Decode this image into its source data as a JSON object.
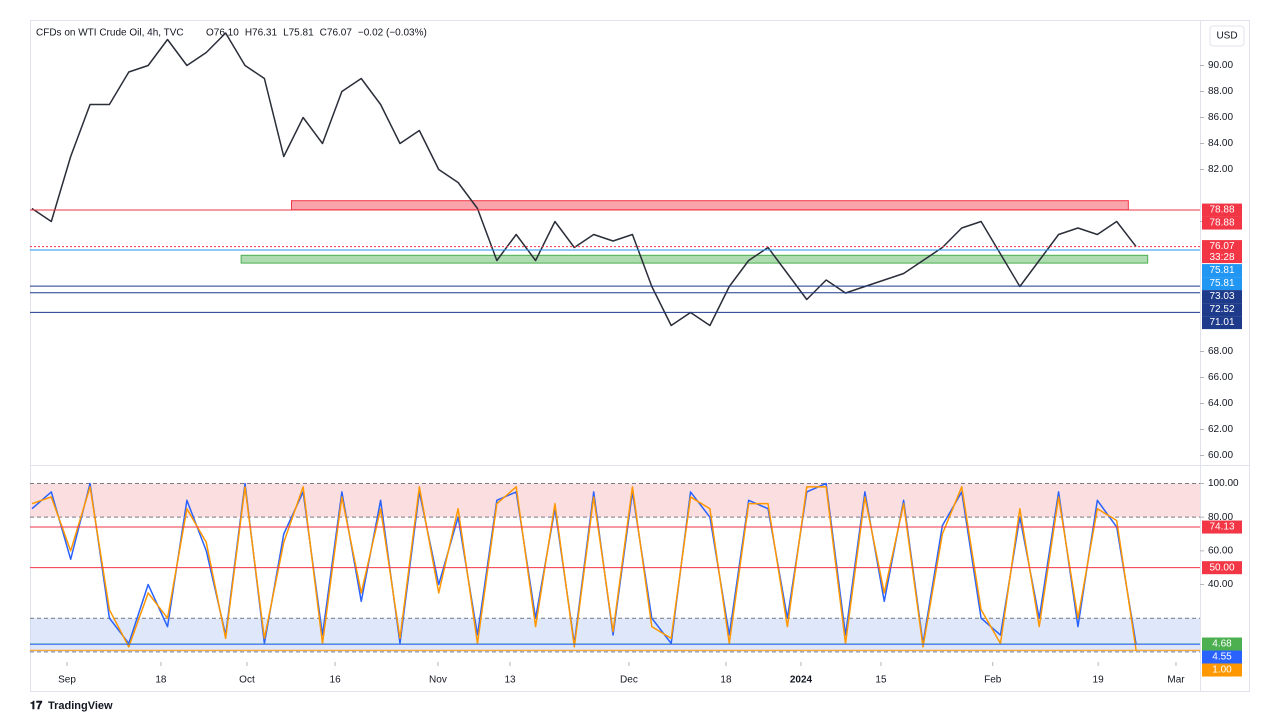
{
  "chart_data": [
    {
      "type": "line",
      "title": "CFDs on WTI Crude Oil, 4h, TVC",
      "ohlc": [
        "O76.10",
        "H76.31",
        "L75.81",
        "C76.07",
        "−0.02 (−0.03%)"
      ],
      "currency": "USD",
      "countdown": "33:28",
      "color": "#2a2e39",
      "values": [
        79,
        78,
        83,
        87,
        87,
        89.5,
        90,
        92,
        90,
        91,
        92.5,
        90,
        89,
        83,
        86,
        84,
        88,
        89,
        87,
        84,
        85,
        82,
        81,
        79,
        75,
        77,
        75,
        78,
        76,
        77,
        76.5,
        77,
        73,
        70,
        71,
        70,
        73,
        75,
        76,
        74,
        72,
        73.5,
        72.5,
        73,
        73.5,
        74,
        75,
        76,
        77.5,
        78,
        75.5,
        73,
        75,
        77,
        77.5,
        77,
        78,
        76.07
      ],
      "xlim": [
        -0.1,
        60.3
      ],
      "xticks": [
        {
          "value": 1.81,
          "label": "Sep"
        },
        {
          "value": 6.66,
          "label": "18"
        },
        {
          "value": 11.1,
          "label": "Oct"
        },
        {
          "value": 15.65,
          "label": "16"
        },
        {
          "value": 20.96,
          "label": "Nov"
        },
        {
          "value": 24.68,
          "label": "13"
        },
        {
          "value": 30.82,
          "label": "Dec"
        },
        {
          "value": 35.83,
          "label": "18"
        },
        {
          "value": 39.7,
          "label": "2024"
        },
        {
          "value": 43.83,
          "label": "15"
        },
        {
          "value": 49.6,
          "label": "Feb"
        },
        {
          "value": 55.04,
          "label": "19"
        },
        {
          "value": 59.06,
          "label": "Mar"
        }
      ],
      "ylim": [
        59.5,
        93.5
      ],
      "yticks": [
        {
          "value": 90,
          "label": "90.00"
        },
        {
          "value": 88,
          "label": "88.00"
        },
        {
          "value": 86,
          "label": "86.00"
        },
        {
          "value": 84,
          "label": "84.00"
        },
        {
          "value": 82,
          "label": "82.00"
        },
        {
          "value": 78,
          "label": "78.00"
        },
        {
          "value": 68,
          "label": "68.00"
        },
        {
          "value": 66,
          "label": "66.00"
        },
        {
          "value": 64,
          "label": "64.00"
        },
        {
          "value": 62,
          "label": "62.00"
        },
        {
          "value": 60,
          "label": "60.00"
        }
      ],
      "zones": [
        {
          "from": 78.9,
          "to": 79.6,
          "x": [
            13.4,
            56.6
          ],
          "color": "#f23645"
        },
        {
          "from": 74.8,
          "to": 75.4,
          "x": [
            10.8,
            57.6
          ],
          "color": "#4caf50"
        }
      ],
      "levels": [
        {
          "value": 78.88,
          "color": "#f23645"
        },
        {
          "value": 78.88,
          "color": "#f23645"
        },
        {
          "value": 76.07,
          "color": "#f23645"
        },
        {
          "value": 75.81,
          "color": "#2196f3"
        },
        {
          "value": 75.81,
          "color": "#2196f3"
        },
        {
          "value": 73.03,
          "color": "#1e3a8a"
        },
        {
          "value": 72.52,
          "color": "#1e3a8a"
        },
        {
          "value": 71.01,
          "color": "#1e3a8a"
        }
      ]
    },
    {
      "type": "line",
      "series": [
        {
          "color": "#2962ff",
          "values": [
            85,
            95,
            55,
            100,
            20,
            5,
            40,
            15,
            90,
            60,
            10,
            100,
            5,
            70,
            95,
            10,
            95,
            30,
            90,
            5,
            95,
            40,
            80,
            10,
            90,
            95,
            20,
            85,
            5,
            95,
            10,
            95,
            20,
            5,
            95,
            80,
            10,
            90,
            85,
            20,
            95,
            100,
            10,
            95,
            30,
            90,
            5,
            75,
            95,
            20,
            10,
            80,
            20,
            95,
            15,
            90,
            74.13,
            4.55
          ]
        },
        {
          "color": "#ff9800",
          "values": [
            88,
            92,
            60,
            98,
            25,
            3,
            35,
            20,
            85,
            65,
            8,
            98,
            8,
            65,
            98,
            5,
            92,
            35,
            85,
            8,
            98,
            35,
            85,
            5,
            88,
            98,
            15,
            88,
            3,
            92,
            12,
            98,
            15,
            8,
            92,
            85,
            5,
            88,
            88,
            15,
            98,
            98,
            5,
            92,
            35,
            88,
            3,
            70,
            98,
            25,
            5,
            85,
            15,
            92,
            20,
            85,
            78,
            1
          ]
        }
      ],
      "xlim": [
        -0.1,
        60.3
      ],
      "ylim": [
        -6,
        108
      ],
      "yticks": [
        {
          "value": 100,
          "label": "100.00"
        },
        {
          "value": 80,
          "label": "80.00"
        },
        {
          "value": 60,
          "label": "60.00"
        },
        {
          "value": 40,
          "label": "40.00"
        }
      ],
      "bands": [
        {
          "from": 80,
          "to": 100,
          "color": "#f8c8cc"
        },
        {
          "from": 0,
          "to": 20,
          "color": "#c9d8f7"
        }
      ],
      "levels": [
        {
          "value": 74.13,
          "color": "#f23645"
        },
        {
          "value": 50,
          "label": "50.00",
          "color": "#f23645"
        },
        {
          "value": 4.68,
          "color": "#4caf50"
        },
        {
          "value": 4.55,
          "color": "#2962ff"
        },
        {
          "value": 1,
          "label": "1.00",
          "color": "#ff9800"
        }
      ]
    }
  ],
  "footer": "TradingView"
}
